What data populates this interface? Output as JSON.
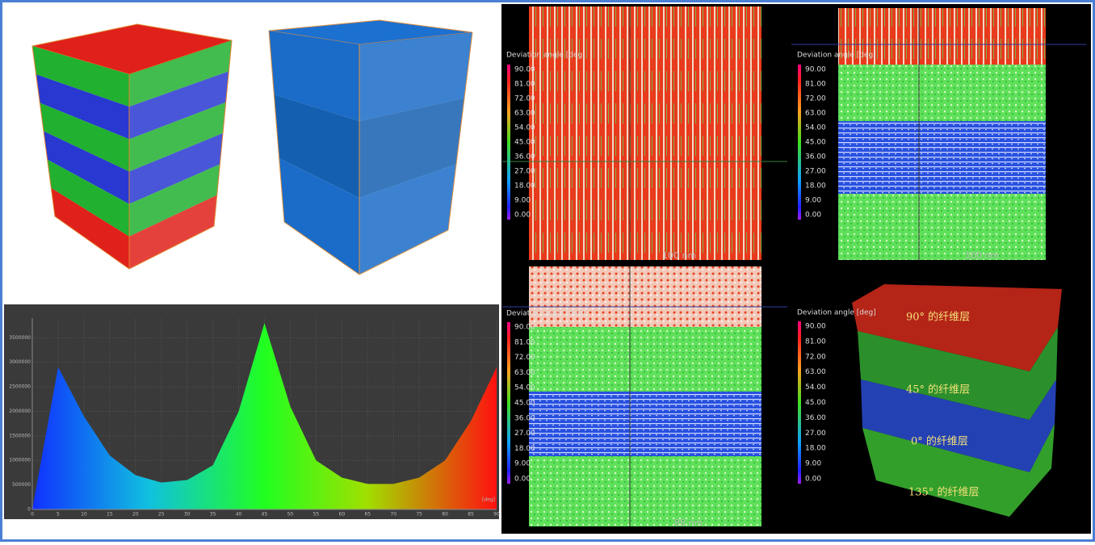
{
  "chart_data": {
    "type": "area",
    "x": [
      0,
      5,
      10,
      15,
      20,
      25,
      30,
      35,
      40,
      45,
      50,
      55,
      60,
      65,
      70,
      75,
      80,
      85,
      90
    ],
    "values": [
      0,
      2900000,
      1900000,
      1100000,
      700000,
      550000,
      600000,
      900000,
      2000000,
      3800000,
      2100000,
      1000000,
      650000,
      520000,
      520000,
      650000,
      1000000,
      1800000,
      2900000
    ],
    "xlim": [
      0,
      90
    ],
    "ylim": [
      0,
      3900000
    ],
    "xticks": [
      0,
      5,
      10,
      15,
      20,
      25,
      30,
      35,
      40,
      45,
      50,
      55,
      60,
      65,
      70,
      75,
      80,
      85,
      90
    ],
    "yticks": [
      0,
      500000,
      1000000,
      1500000,
      2000000,
      2500000,
      3000000,
      3500000
    ],
    "x_unit": "[deg]",
    "grid": true
  },
  "colorbar": {
    "title": "Deviation angle [deg]",
    "labels": [
      "90.00",
      "81.00",
      "72.00",
      "63.00",
      "54.00",
      "45.00",
      "36.00",
      "27.00",
      "18.00",
      "9.00",
      "0.00"
    ]
  },
  "slices": {
    "scale_labels": [
      "100 nm",
      "100 nm",
      "88 nm"
    ]
  },
  "layers": [
    "90° 的纤维层",
    "45° 的纤维层",
    "0° 的纤维层",
    "135° 的纤维层"
  ]
}
